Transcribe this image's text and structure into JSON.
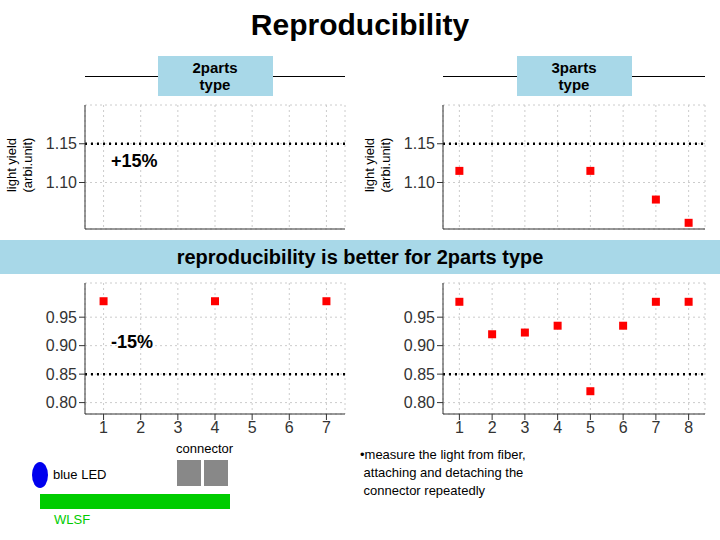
{
  "title": "Reproducibility",
  "annotations": [
    {
      "text": "reproducibility is better for 2parts type",
      "color": "#a8d8e8"
    },
    {
      "text": "blue LED",
      "color": "#0000ee"
    },
    {
      "text": "connector",
      "color": "#888888"
    },
    {
      "text": "WLSF",
      "color": "#00cc00"
    },
    {
      "text": "•measure the light from fiber,\n attaching and detaching the\n connector repeatedly"
    }
  ],
  "chart_data": [
    {
      "type": "scatter",
      "subtitle": "2parts\ntype",
      "ylabel": "light yield\n(arbi.unit)",
      "x": [],
      "values": [],
      "xlim": [
        0.5,
        7.5
      ],
      "ylim": [
        1.04,
        1.2
      ],
      "xticks": [
        1,
        2,
        3,
        4,
        5,
        6,
        7
      ],
      "yticks": [
        {
          "value": 1.1,
          "label": "1.10"
        },
        {
          "value": 1.15,
          "label": "1.15"
        }
      ],
      "grid": true,
      "tick_labels": "y",
      "color": "#ff0000",
      "marker": "square",
      "reference_line": 1.15,
      "annotations": [
        {
          "text": "+15%"
        }
      ]
    },
    {
      "type": "scatter",
      "subtitle": "3parts\ntype",
      "ylabel": "light yield\n(arbi.unit)",
      "x": [
        1,
        5,
        7,
        8
      ],
      "values": [
        1.115,
        1.115,
        1.078,
        1.048
      ],
      "xlim": [
        0.5,
        8.5
      ],
      "ylim": [
        1.04,
        1.2
      ],
      "xticks": [
        1,
        2,
        3,
        4,
        5,
        6,
        7,
        8
      ],
      "yticks": [
        {
          "value": 1.1,
          "label": "1.10"
        },
        {
          "value": 1.15,
          "label": "1.15"
        }
      ],
      "grid": true,
      "tick_labels": "y",
      "color": "#ff0000",
      "marker": "square",
      "reference_line": 1.15
    },
    {
      "type": "scatter",
      "x": [
        1,
        4,
        7
      ],
      "values": [
        0.978,
        0.978,
        0.978
      ],
      "xlim": [
        0.5,
        7.5
      ],
      "ylim": [
        0.78,
        1.01
      ],
      "xticks": [
        1,
        2,
        3,
        4,
        5,
        6,
        7
      ],
      "yticks": [
        {
          "value": 0.8,
          "label": "0.80"
        },
        {
          "value": 0.85,
          "label": "0.85"
        },
        {
          "value": 0.9,
          "label": "0.90"
        },
        {
          "value": 0.95,
          "label": "0.95"
        }
      ],
      "grid": true,
      "color": "#ff0000",
      "marker": "square",
      "reference_line": 0.85,
      "annotations": [
        {
          "text": "-15%"
        }
      ]
    },
    {
      "type": "scatter",
      "x": [
        1,
        2,
        3,
        4,
        5,
        6,
        7,
        8
      ],
      "values": [
        0.977,
        0.92,
        0.923,
        0.935,
        0.82,
        0.935,
        0.977,
        0.977
      ],
      "xlim": [
        0.5,
        8.5
      ],
      "ylim": [
        0.78,
        1.01
      ],
      "xticks": [
        1,
        2,
        3,
        4,
        5,
        6,
        7,
        8
      ],
      "yticks": [
        {
          "value": 0.8,
          "label": "0.80"
        },
        {
          "value": 0.85,
          "label": "0.85"
        },
        {
          "value": 0.9,
          "label": "0.90"
        },
        {
          "value": 0.95,
          "label": "0.95"
        }
      ],
      "grid": true,
      "color": "#ff0000",
      "marker": "square",
      "reference_line": 0.85
    }
  ]
}
